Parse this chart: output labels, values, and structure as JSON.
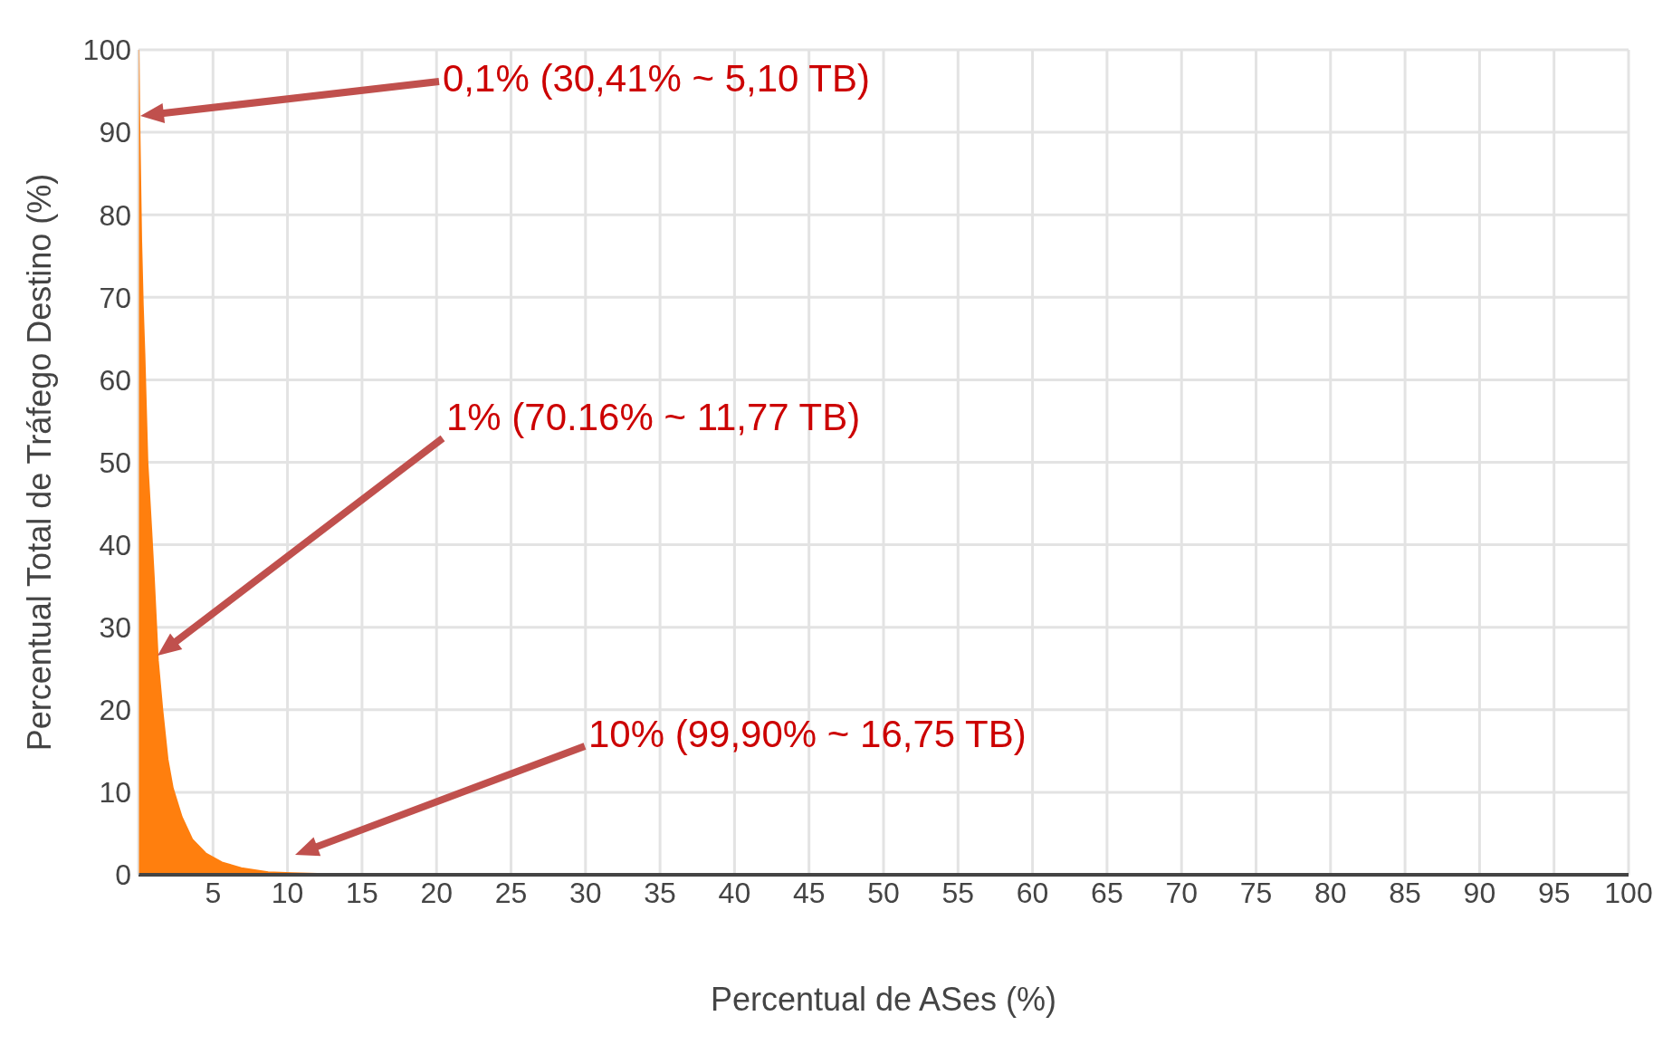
{
  "chart_data": {
    "type": "area",
    "xlabel": "Percentual de ASes (%)",
    "ylabel": "Percentual Total de Tráfego Destino (%)",
    "x": [
      0,
      0.05,
      0.18,
      0.29,
      0.4,
      0.6,
      0.85,
      1.03,
      1.3,
      1.6,
      1.95,
      2.3,
      2.9,
      3.6,
      4.5,
      5.6,
      6.9,
      8.7,
      10.3,
      12,
      15,
      19,
      19.1,
      30,
      50,
      70,
      100
    ],
    "series": [
      {
        "color": "#ff7f0e",
        "values": [
          100,
          92,
          77,
          69,
          63,
          50,
          42,
          36,
          26,
          20,
          14,
          10.5,
          7,
          4.3,
          2.6,
          1.5,
          0.8,
          0.3,
          0.2,
          0.1,
          0.1,
          0.1,
          0,
          0,
          0,
          0,
          0
        ]
      }
    ],
    "xlim": [
      0,
      100
    ],
    "xticks": [
      5,
      10,
      15,
      20,
      25,
      30,
      35,
      40,
      45,
      50,
      55,
      60,
      65,
      70,
      75,
      80,
      85,
      90,
      95,
      100
    ],
    "ylim": [
      0,
      100
    ],
    "yticks": [
      0,
      10,
      20,
      30,
      40,
      50,
      60,
      70,
      80,
      90,
      100
    ],
    "grid": true,
    "annotations": [
      "0,1% (30,41% ~ 5,10 TB)",
      "1% (70.16% ~ 11,77 TB)",
      "10% (99,90% ~ 16,75 TB)"
    ]
  }
}
